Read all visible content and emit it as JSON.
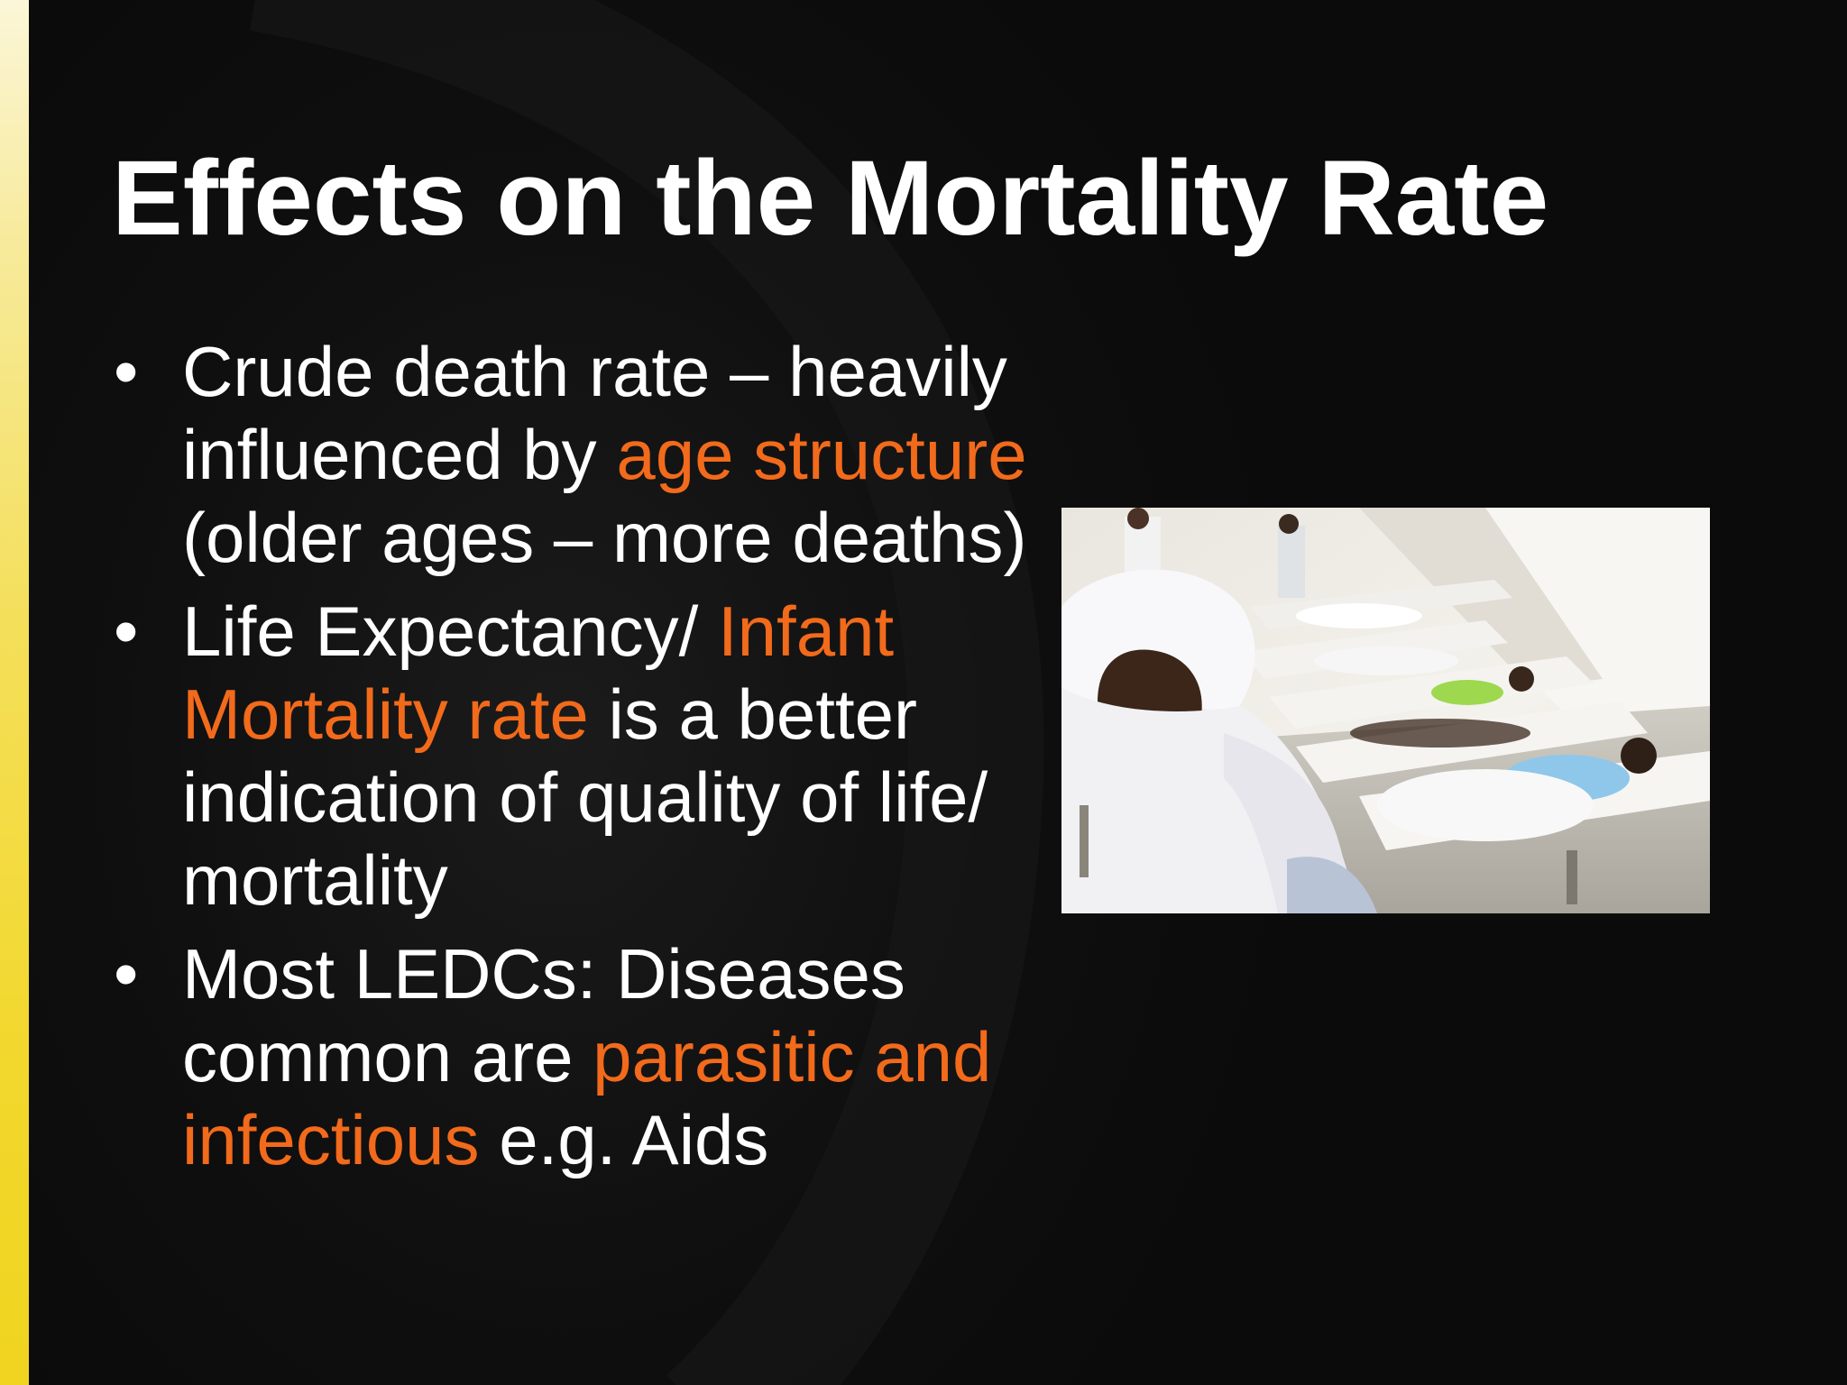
{
  "slide": {
    "title": "Effects on the Mortality Rate",
    "bullet_symbol": "•",
    "bullets": [
      {
        "segments": [
          {
            "text": "Crude death rate – heavily influenced by ",
            "highlight": false
          },
          {
            "text": "age structure",
            "highlight": true
          },
          {
            "text": " (older ages – more deaths)",
            "highlight": false
          }
        ]
      },
      {
        "segments": [
          {
            "text": "Life Expectancy/ ",
            "highlight": false
          },
          {
            "text": "Infant Mortality rate",
            "highlight": true
          },
          {
            "text": " is a better indication of quality of life/ mortality",
            "highlight": false
          }
        ]
      },
      {
        "segments": [
          {
            "text": "Most LEDCs: Diseases common are ",
            "highlight": false
          },
          {
            "text": "parasitic and infectious",
            "highlight": true
          },
          {
            "text": " e.g. Aids",
            "highlight": false
          }
        ]
      }
    ]
  },
  "colors": {
    "background": "#0b0b0b",
    "text": "#ffffff",
    "highlight": "#f26a1b",
    "edge_bar": "#f2d82e"
  },
  "photo": {
    "icon": "photo-patients-in-tent-clinic"
  }
}
